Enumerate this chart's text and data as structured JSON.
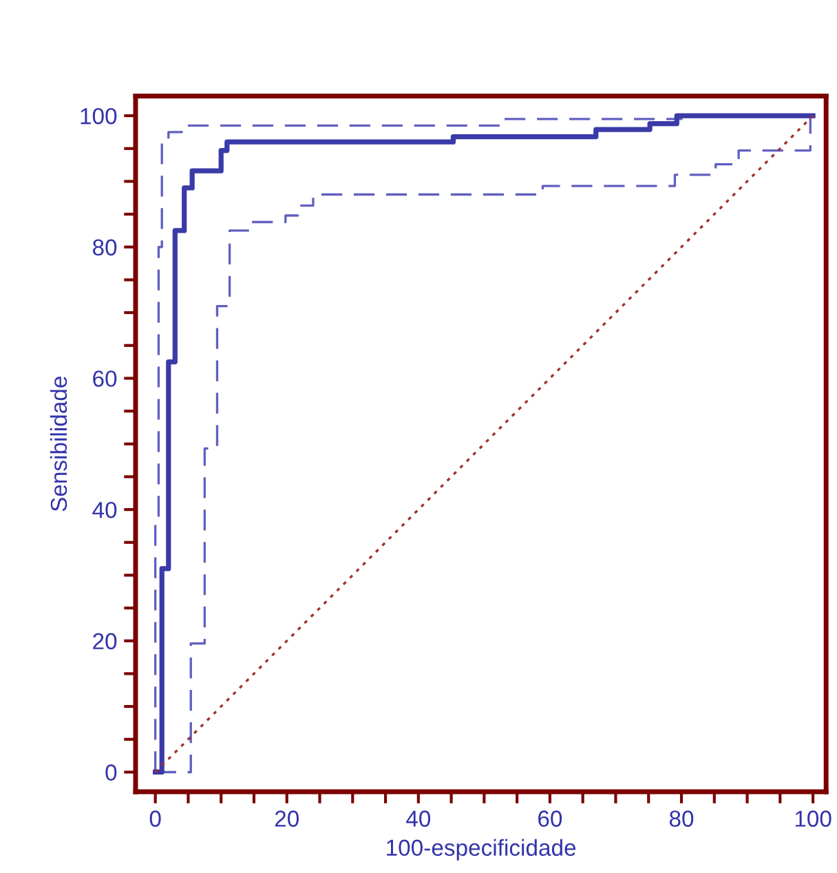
{
  "chart_data": {
    "type": "step",
    "xlabel": "100-especificidade",
    "ylabel": "Sensibilidade",
    "xlim": [
      -3,
      102
    ],
    "ylim": [
      -3,
      103
    ],
    "xticks": [
      0,
      {
        "value": 5,
        "label": null
      },
      {
        "value": 10,
        "label": null
      },
      {
        "value": 15,
        "label": null
      },
      20,
      {
        "value": 25,
        "label": null
      },
      {
        "value": 30,
        "label": null
      },
      {
        "value": 35,
        "label": null
      },
      40,
      {
        "value": 45,
        "label": null
      },
      {
        "value": 50,
        "label": null
      },
      {
        "value": 55,
        "label": null
      },
      60,
      {
        "value": 65,
        "label": null
      },
      {
        "value": 70,
        "label": null
      },
      {
        "value": 75,
        "label": null
      },
      80,
      {
        "value": 85,
        "label": null
      },
      {
        "value": 90,
        "label": null
      },
      {
        "value": 95,
        "label": null
      },
      100
    ],
    "yticks": [
      0,
      {
        "value": 5,
        "label": null
      },
      {
        "value": 10,
        "label": null
      },
      {
        "value": 15,
        "label": null
      },
      20,
      {
        "value": 25,
        "label": null
      },
      {
        "value": 30,
        "label": null
      },
      {
        "value": 35,
        "label": null
      },
      40,
      {
        "value": 45,
        "label": null
      },
      {
        "value": 50,
        "label": null
      },
      {
        "value": 55,
        "label": null
      },
      60,
      {
        "value": 65,
        "label": null
      },
      {
        "value": 70,
        "label": null
      },
      {
        "value": 75,
        "label": null
      },
      80,
      {
        "value": 85,
        "label": null
      },
      {
        "value": 90,
        "label": null
      },
      {
        "value": 95,
        "label": null
      },
      100
    ],
    "grid": false,
    "marker": "none",
    "series": [
      {
        "type": "line",
        "color": "#a03030",
        "line_style": "dotted",
        "x": [
          0,
          100
        ],
        "values": [
          0,
          100
        ]
      },
      {
        "color": "#6060c0",
        "line_style": "dashed",
        "x": [
          0,
          0,
          0.5,
          0.5,
          1,
          1,
          2,
          2,
          4,
          4,
          53,
          53,
          80,
          80,
          100
        ],
        "values": [
          0,
          38,
          38,
          80,
          80,
          96,
          96,
          97.5,
          97.5,
          98.5,
          98.5,
          99.5,
          99.5,
          100,
          100
        ]
      },
      {
        "color": "#6060c0",
        "line_style": "dashed",
        "x": [
          0,
          5.4,
          5.4,
          7.5,
          7.5,
          9.4,
          9.4,
          11.3,
          11.3,
          14.4,
          14.4,
          19.8,
          19.8,
          21.7,
          21.7,
          24,
          24,
          58.9,
          58.9,
          79,
          79,
          85.2,
          85.2,
          88.7,
          88.7,
          99.6,
          99.6,
          100
        ],
        "values": [
          0,
          0,
          19.6,
          19.6,
          49.3,
          49.3,
          71,
          71,
          82.5,
          82.5,
          83.8,
          83.8,
          84.8,
          84.8,
          86.3,
          86.3,
          88,
          88,
          89.3,
          89.3,
          91,
          91,
          92.6,
          92.6,
          94.7,
          94.7,
          100,
          100
        ]
      },
      {
        "color": "#3a3aa8",
        "line_style": "solid",
        "x": [
          0,
          1,
          1,
          2,
          2,
          3,
          3,
          4.4,
          4.4,
          5.6,
          5.6,
          10,
          10,
          10.9,
          10.9,
          45.3,
          45.3,
          67,
          67,
          75.2,
          75.2,
          79.3,
          79.3,
          100
        ],
        "values": [
          0,
          0,
          31,
          31,
          62.5,
          62.5,
          82.5,
          82.5,
          89,
          89,
          91.6,
          91.6,
          94.7,
          94.7,
          96,
          96,
          96.8,
          96.8,
          97.9,
          97.9,
          98.8,
          98.8,
          100,
          100
        ]
      }
    ]
  }
}
